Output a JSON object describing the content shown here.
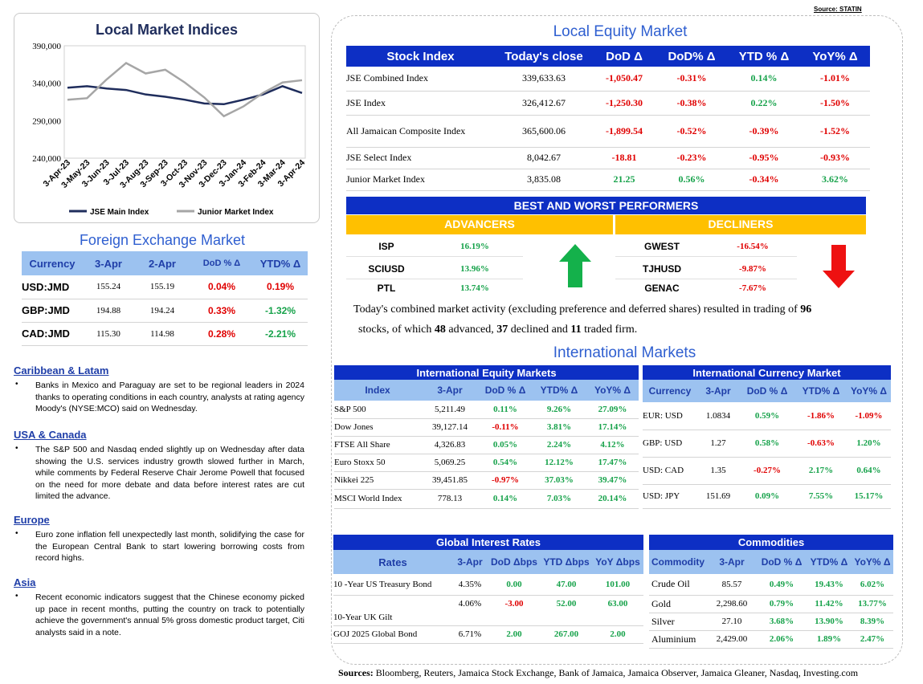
{
  "source_top": "Source: STATIN",
  "chart": {
    "title": "Local Market Indices",
    "legend": [
      "JSE Main Index",
      "Junior Market Index"
    ]
  },
  "chart_data": {
    "type": "line",
    "title": "Local Market Indices",
    "x": [
      "3-Apr-23",
      "3-May-23",
      "3-Jun-23",
      "3-Jul-23",
      "3-Aug-23",
      "3-Sep-23",
      "3-Oct-23",
      "3-Nov-23",
      "3-Dec-23",
      "3-Jan-24",
      "3-Feb-24",
      "3-Mar-24",
      "3-Apr-24"
    ],
    "ylim": [
      240000,
      390000
    ],
    "yticks": [
      "390,000",
      "340,000",
      "290,000",
      "240,000"
    ],
    "series": [
      {
        "name": "JSE Main Index",
        "color": "#1f2d5c",
        "values": [
          334000,
          336000,
          333000,
          331000,
          325000,
          322000,
          318000,
          313000,
          312000,
          318000,
          325000,
          336000,
          327000
        ]
      },
      {
        "name": "Junior Market Index",
        "color": "#a6a6a6",
        "values": [
          318000,
          320000,
          345000,
          367000,
          353000,
          358000,
          341000,
          321000,
          296000,
          309000,
          327000,
          341000,
          344000
        ]
      }
    ]
  },
  "fx": {
    "title": "Foreign Exchange Market",
    "headers": [
      "Currency",
      "3-Apr",
      "2-Apr",
      "DoD % Δ",
      "YTD% Δ"
    ],
    "rows": [
      [
        "USD:JMD",
        "155.24",
        "155.19",
        "0.04%",
        "0.19%"
      ],
      [
        "GBP:JMD",
        "194.88",
        "194.24",
        "0.33%",
        "-1.32%"
      ],
      [
        "CAD:JMD",
        "115.30",
        "114.98",
        "0.28%",
        "-2.21%"
      ]
    ]
  },
  "news": [
    {
      "heading": "Caribbean & Latam",
      "text": "Banks in Mexico and Paraguay are set to be regional leaders in 2024 thanks to operating conditions in each country, analysts at rating agency Moody's (NYSE:MCO) said on Wednesday."
    },
    {
      "heading": "USA & Canada",
      "text": "The S&P 500 and Nasdaq ended slightly up on Wednesday after data showing the U.S. services industry growth slowed further in March, while comments by Federal Reserve Chair Jerome Powell that focused on the need for more debate and data before interest rates are cut limited the advance."
    },
    {
      "heading": "Europe",
      "text": "Euro zone inflation fell unexpectedly last month, solidifying the case for the European Central Bank to start lowering borrowing costs from record highs."
    },
    {
      "heading": "Asia",
      "text": "Recent economic indicators suggest that the Chinese economy picked up pace in recent months, putting the country on track to potentially achieve the government's annual 5% gross domestic product target, Citi analysts said in a note."
    }
  ],
  "equity": {
    "title": "Local Equity Market",
    "headers": [
      "Stock Index",
      "Today's close",
      "DoD  Δ",
      "DoD% Δ",
      "YTD % Δ",
      "YoY% Δ"
    ],
    "rows": [
      [
        "JSE Combined Index",
        "339,633.63",
        "-1,050.47",
        "-0.31%",
        "0.14%",
        "-1.01%"
      ],
      [
        "JSE Index",
        "326,412.67",
        "-1,250.30",
        "-0.38%",
        "0.22%",
        "-1.50%"
      ],
      [
        "All Jamaican Composite Index",
        "365,600.06",
        "-1,899.54",
        "-0.52%",
        "-0.39%",
        "-1.52%"
      ],
      [
        "JSE Select Index",
        "8,042.67",
        "-18.81",
        "-0.23%",
        "-0.95%",
        "-0.93%"
      ],
      [
        "Junior Market Index",
        "3,835.08",
        "21.25",
        "0.56%",
        "-0.34%",
        "3.62%"
      ]
    ]
  },
  "performers": {
    "title": "BEST AND WORST PERFORMERS",
    "advancers_label": "ADVANCERS",
    "decliners_label": "DECLINERS",
    "advancers": [
      [
        "ISP",
        "16.19%"
      ],
      [
        "SCIUSD",
        "13.96%"
      ],
      [
        "PTL",
        "13.74%"
      ]
    ],
    "decliners": [
      [
        "GWEST",
        "-16.54%"
      ],
      [
        "TJHUSD",
        "-9.87%"
      ],
      [
        "GENAC",
        "-7.67%"
      ]
    ]
  },
  "summary": {
    "p1": "Today's combined market activity (excluding preference and deferred shares) resulted in trading of ",
    "total": "96",
    "p2": "stocks, of which ",
    "advanced": "48",
    "p3": " advanced, ",
    "declined": "37",
    "p4": " declined and ",
    "firm": "11",
    "p5": " traded firm."
  },
  "intl": {
    "title": "International Markets",
    "equity_title": "International Equity Markets",
    "equity_headers": [
      "Index",
      "3-Apr",
      "DoD % Δ",
      "YTD% Δ",
      "YoY% Δ"
    ],
    "equity_rows": [
      [
        "S&P 500",
        "5,211.49",
        "0.11%",
        "9.26%",
        "27.09%"
      ],
      [
        "Dow Jones",
        "39,127.14",
        "-0.11%",
        "3.81%",
        "17.14%"
      ],
      [
        "FTSE All Share",
        "4,326.83",
        "0.05%",
        "2.24%",
        "4.12%"
      ],
      [
        "Euro Stoxx 50",
        "5,069.25",
        "0.54%",
        "12.12%",
        "17.47%"
      ],
      [
        "Nikkei 225",
        "39,451.85",
        "-0.97%",
        "37.03%",
        "39.47%"
      ],
      [
        "MSCI World Index",
        "778.13",
        "0.14%",
        "7.03%",
        "20.14%"
      ]
    ],
    "currency_title": "International Currency Market",
    "currency_headers": [
      "Currency",
      "3-Apr",
      "DoD % Δ",
      "YTD% Δ",
      "YoY% Δ"
    ],
    "currency_rows": [
      [
        "EUR: USD",
        "1.0834",
        "0.59%",
        "-1.86%",
        "-1.09%"
      ],
      [
        "GBP: USD",
        "1.27",
        "0.58%",
        "-0.63%",
        "1.20%"
      ],
      [
        "USD: CAD",
        "1.35",
        "-0.27%",
        "2.17%",
        "0.64%"
      ],
      [
        "USD: JPY",
        "151.69",
        "0.09%",
        "7.55%",
        "15.17%"
      ]
    ]
  },
  "rates": {
    "title": "Global Interest Rates",
    "headers": [
      "Rates",
      "3-Apr",
      "DoD Δbps",
      "YTD Δbps",
      "YoY Δbps"
    ],
    "rows": [
      [
        "10 -Year US Treasury Bond",
        "4.35%",
        "0.00",
        "47.00",
        "101.00"
      ],
      [
        "10-Year UK Gilt",
        "4.06%",
        "-3.00",
        "52.00",
        "63.00"
      ],
      [
        "GOJ 2025 Global Bond",
        "6.71%",
        "2.00",
        "267.00",
        "2.00"
      ]
    ]
  },
  "commodities": {
    "title": "Commodities",
    "headers": [
      "Commodity",
      "3-Apr",
      "DoD % Δ",
      "YTD% Δ",
      "YoY% Δ"
    ],
    "rows": [
      [
        "Crude Oil",
        "85.57",
        "0.49%",
        "19.43%",
        "6.02%"
      ],
      [
        "Gold",
        "2,298.60",
        "0.79%",
        "11.42%",
        "13.77%"
      ],
      [
        "Silver",
        "27.10",
        "3.68%",
        "13.90%",
        "8.39%"
      ],
      [
        "Aluminium",
        "2,429.00",
        "2.06%",
        "1.89%",
        "2.47%"
      ]
    ]
  },
  "sources": {
    "label": "Sources:",
    "text": " Bloomberg, Reuters, Jamaica Stock Exchange, Bank of Jamaica, Jamaica Observer, Jamaica Gleaner, Nasdaq, Investing.com"
  }
}
